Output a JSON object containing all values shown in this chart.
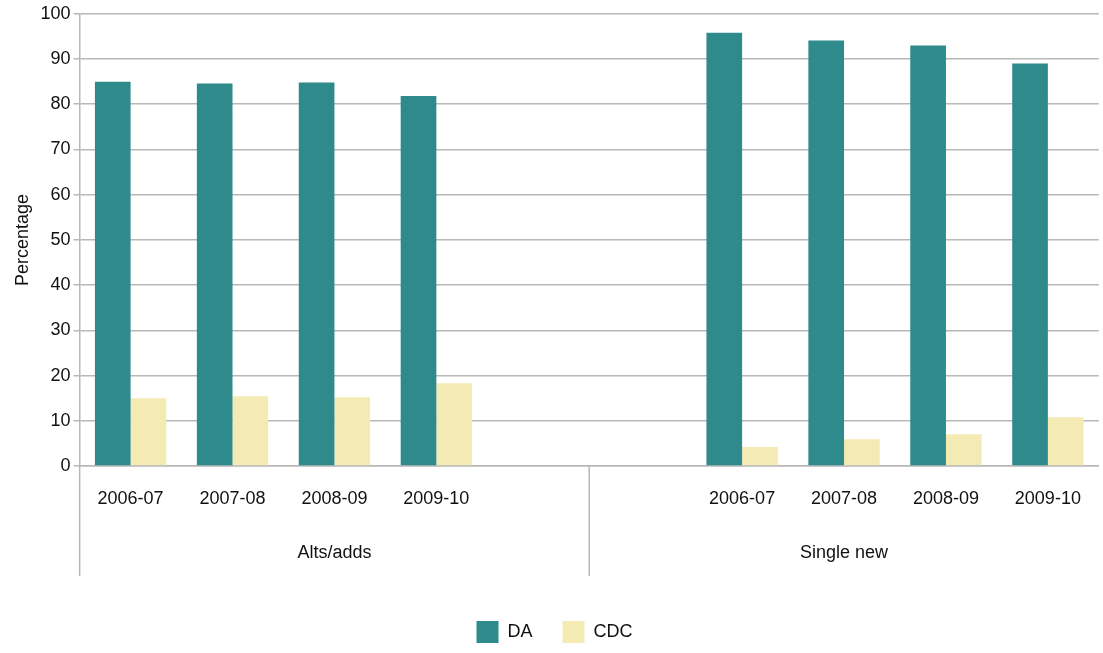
{
  "chart_data": {
    "type": "bar",
    "ylabel": "Percentage",
    "categories": [
      "2006-07",
      "2007-08",
      "2008-09",
      "2009-10",
      null,
      null,
      "2006-07",
      "2007-08",
      "2008-09",
      "2009-10"
    ],
    "series": [
      {
        "name": "DA",
        "color": "#2f8a8c",
        "values": [
          85.0,
          84.6,
          84.8,
          81.8,
          null,
          null,
          95.8,
          94.1,
          93.0,
          89.0
        ]
      },
      {
        "name": "CDC",
        "color": "#f3eab4",
        "values": [
          15.0,
          15.4,
          15.2,
          18.3,
          null,
          null,
          4.2,
          5.9,
          7.0,
          10.8
        ]
      }
    ],
    "annotations": [
      "Alts/adds",
      "Single new"
    ],
    "ylim": [
      0,
      100
    ],
    "yticks": [
      0,
      10,
      20,
      30,
      40,
      50,
      60,
      70,
      80,
      90,
      100
    ],
    "grid": "y",
    "legend": "bottom"
  }
}
